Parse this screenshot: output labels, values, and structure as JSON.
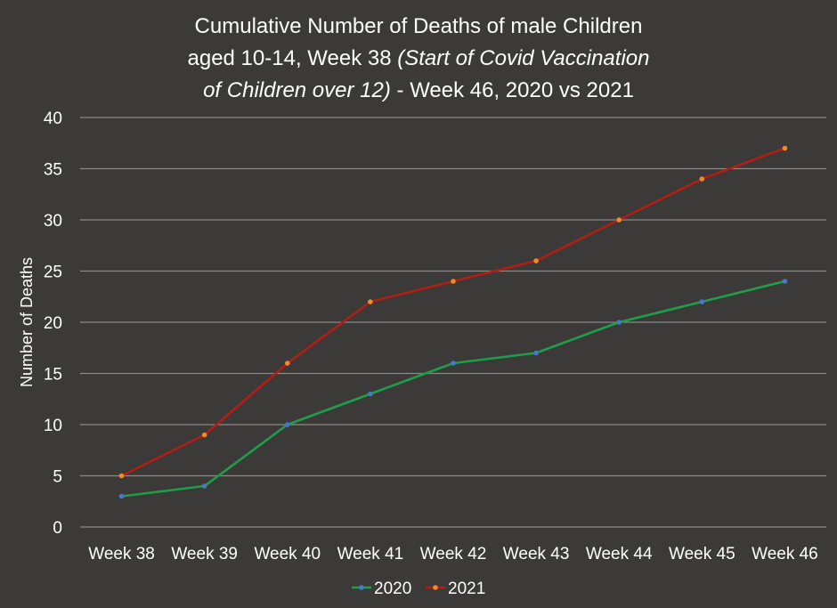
{
  "chart_data": {
    "type": "line",
    "title": {
      "line1": "Cumulative Number of Deaths of male Children",
      "line2_normal": "aged 10-14, Week 38 ",
      "line2_italic": "(Start of Covid Vaccination",
      "line3_italic": "of Children over 12)",
      "line3_normal": " - Week 46, 2020 vs 2021"
    },
    "xlabel": "",
    "ylabel": "Number of Deaths",
    "categories": [
      "Week 38",
      "Week 39",
      "Week 40",
      "Week 41",
      "Week 42",
      "Week 43",
      "Week 44",
      "Week 45",
      "Week 46"
    ],
    "ylim": [
      0,
      40
    ],
    "yticks": [
      0,
      5,
      10,
      15,
      20,
      25,
      30,
      35,
      40
    ],
    "grid": true,
    "legend_position": "bottom",
    "series": [
      {
        "name": "2020",
        "values": [
          3,
          4,
          10,
          13,
          16,
          17,
          20,
          22,
          24
        ],
        "line_color": "#1f9e4a",
        "marker_color": "#4a78c8"
      },
      {
        "name": "2021",
        "values": [
          5,
          9,
          16,
          22,
          24,
          26,
          30,
          34,
          37
        ],
        "line_color": "#b01e14",
        "marker_color": "#f08a2a"
      }
    ],
    "background_color": "#3b3a39",
    "gridline_color": "#8a8988"
  }
}
